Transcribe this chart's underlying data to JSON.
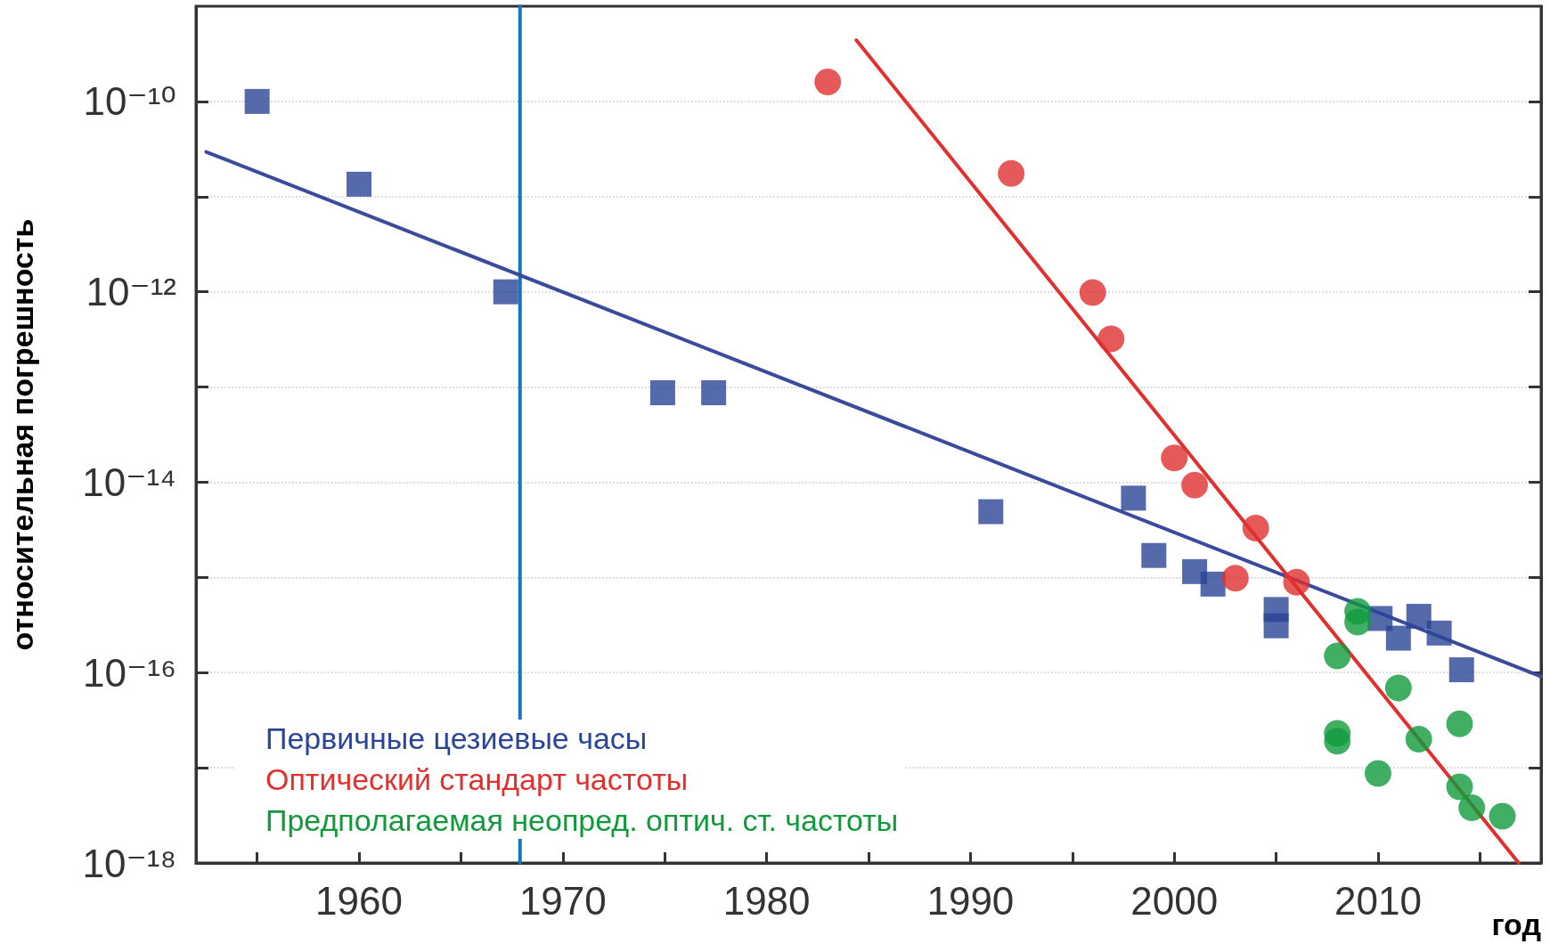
{
  "chart_data": {
    "type": "scatter",
    "xlabel": "год",
    "ylabel": "относительная погрешность",
    "xlim": [
      1952,
      2018
    ],
    "xticks": [
      {
        "value": 1955,
        "label": null
      },
      1960,
      {
        "value": 1965,
        "label": null
      },
      1970,
      {
        "value": 1975,
        "label": null
      },
      1980,
      {
        "value": 1985,
        "label": null
      },
      1990,
      {
        "value": 1995,
        "label": null
      },
      2000,
      {
        "value": 2005,
        "label": null
      },
      2010,
      {
        "value": 2015,
        "label": null
      }
    ],
    "ylim": [
      1e-18,
      1e-09
    ],
    "log": "y",
    "yticks": [
      {
        "value": 1e-18,
        "label": "10⁻¹⁸"
      },
      {
        "value": 1e-17,
        "label": null
      },
      {
        "value": 1e-16,
        "label": "10⁻¹⁶"
      },
      {
        "value": 1e-15,
        "label": null
      },
      {
        "value": 1e-14,
        "label": "10⁻¹⁴"
      },
      {
        "value": 1e-13,
        "label": null
      },
      {
        "value": 1e-12,
        "label": "10⁻¹²"
      },
      {
        "value": 1e-11,
        "label": null
      },
      {
        "value": 1e-10,
        "label": "10⁻¹⁰"
      }
    ],
    "grid": "y",
    "legend": "bottom left",
    "series": [
      {
        "name": "Первичные цезиевые часы",
        "marker": "square",
        "color": "#2b4596",
        "x": [
          1955.0,
          1960.0,
          1967.2,
          1974.9,
          1977.4,
          1991.0,
          1998.0,
          1999.0,
          2001.0,
          2001.9,
          2005.0,
          2005.0,
          2010.1,
          2011.0,
          2012.0,
          2013.0,
          2014.1
        ],
        "values": [
          1e-10,
          1.35e-11,
          1e-12,
          8.7e-14,
          8.7e-14,
          4.9e-15,
          6.8e-15,
          1.7e-15,
          1.15e-15,
          8.5e-16,
          4.6e-16,
          3.1e-16,
          3.7e-16,
          2.3e-16,
          3.9e-16,
          2.6e-16,
          1.07e-16
        ]
      },
      {
        "name": "Оптический стандарт частоты",
        "marker": "circle",
        "color": "#e03030",
        "x": [
          1983.0,
          1992.0,
          1996.0,
          1996.9,
          2000.0,
          2001.0,
          2003.0,
          2004.0,
          2006.0
        ],
        "values": [
          1.6e-10,
          1.75e-11,
          9.8e-13,
          3.2e-13,
          1.8e-14,
          9.3e-15,
          9.8e-16,
          3.3e-15,
          8.9e-16
        ]
      },
      {
        "name": "Предполагаемая неопред. оптич. ст. частоты",
        "marker": "circle",
        "color": "#109a3c",
        "x": [
          2008.0,
          2008.0,
          2008.0,
          2009.0,
          2009.0,
          2010.0,
          2011.0,
          2012.0,
          2014.0,
          2014.0,
          2014.6,
          2016.1
        ],
        "values": [
          1.5e-16,
          2.3e-17,
          1.9e-17,
          4.4e-16,
          3.4e-16,
          8.7e-18,
          6.9e-17,
          2e-17,
          2.9e-17,
          6.3e-18,
          3.8e-18,
          3.1e-18
        ]
      },
      {
        "type": "line",
        "marker": "none",
        "color": "#1a73c0",
        "x": [
          1967.9,
          1967.9
        ],
        "values": [
          1e-18,
          1e-09
        ]
      },
      {
        "type": "line",
        "marker": "none",
        "color": "#3a4a9c",
        "x": [
          1952.5,
          2018
        ],
        "values": [
          2.95e-11,
          9.1e-17
        ]
      },
      {
        "type": "line",
        "marker": "none",
        "color": "#e03030",
        "x": [
          1984.4,
          2016.9
        ],
        "values": [
          4.4e-10,
          1e-18
        ]
      }
    ]
  }
}
